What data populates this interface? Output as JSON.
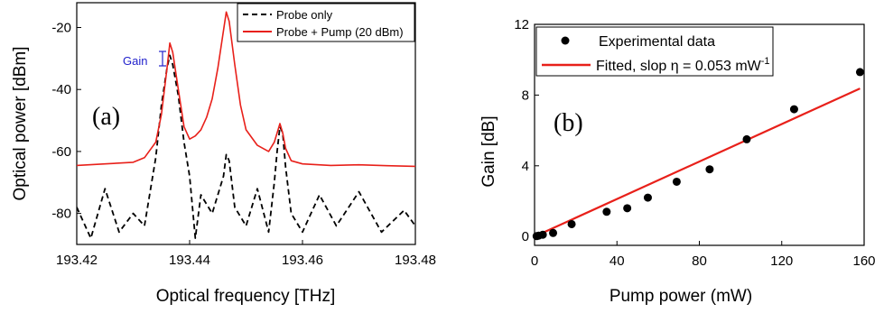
{
  "chart_data": [
    {
      "type": "line",
      "panel_label": "(a)",
      "xlabel": "Optical frequency [THz]",
      "ylabel": "Optical power [dBm]",
      "xlim": [
        193.42,
        193.48
      ],
      "ylim": [
        -90,
        -12
      ],
      "xticks": [
        "193.42",
        "193.44",
        "193.46",
        "193.48"
      ],
      "yticks": [
        "-80",
        "-60",
        "-40",
        "-20"
      ],
      "legend_position": "top-right",
      "gain_annotation": "Gain",
      "colors": {
        "probe_only": "#000000",
        "probe_pump": "#e8201a",
        "gain_marker": "#2222cc"
      },
      "series": [
        {
          "name": "Probe only",
          "style": "dashed",
          "x": [
            193.42,
            193.4225,
            193.425,
            193.4275,
            193.43,
            193.432,
            193.434,
            193.435,
            193.436,
            193.4365,
            193.437,
            193.438,
            193.439,
            193.44,
            193.441,
            193.442,
            193.444,
            193.446,
            193.4465,
            193.447,
            193.448,
            193.45,
            193.452,
            193.454,
            193.455,
            193.4555,
            193.456,
            193.4565,
            193.457,
            193.458,
            193.46,
            193.463,
            193.466,
            193.47,
            193.474,
            193.478,
            193.48
          ],
          "y": [
            -78,
            -88,
            -72,
            -86,
            -80,
            -84,
            -62,
            -45,
            -33,
            -29,
            -32,
            -42,
            -57,
            -68,
            -88,
            -74,
            -80,
            -68,
            -61,
            -63,
            -78,
            -84,
            -72,
            -86,
            -70,
            -60,
            -52,
            -54,
            -65,
            -80,
            -86,
            -74,
            -84,
            -73,
            -86,
            -79,
            -84
          ]
        },
        {
          "name": "Probe + Pump (20 dBm)",
          "style": "solid",
          "x": [
            193.42,
            193.425,
            193.43,
            193.432,
            193.434,
            193.435,
            193.436,
            193.4365,
            193.437,
            193.438,
            193.439,
            193.44,
            193.441,
            193.442,
            193.443,
            193.444,
            193.445,
            193.446,
            193.4465,
            193.447,
            193.448,
            193.449,
            193.45,
            193.452,
            193.454,
            193.455,
            193.4555,
            193.456,
            193.4565,
            193.457,
            193.458,
            193.46,
            193.465,
            193.47,
            193.475,
            193.48
          ],
          "y": [
            -64.5,
            -64,
            -63.5,
            -62,
            -57,
            -48,
            -33,
            -25,
            -28,
            -40,
            -52,
            -56,
            -55,
            -53,
            -49,
            -43,
            -33,
            -21,
            -15,
            -18,
            -32,
            -45,
            -53,
            -58,
            -60,
            -57,
            -54,
            -51,
            -54,
            -59,
            -63,
            -64,
            -64.5,
            -64.3,
            -64.6,
            -64.8
          ]
        }
      ]
    },
    {
      "type": "scatter",
      "panel_label": "(b)",
      "xlabel": "Pump power (mW)",
      "ylabel": "Gain [dB]",
      "xlim": [
        0,
        160
      ],
      "ylim": [
        -0.5,
        12
      ],
      "xticks": [
        "0",
        "40",
        "80",
        "120",
        "160"
      ],
      "yticks": [
        "0",
        "4",
        "8",
        "12"
      ],
      "legend_position": "top-left",
      "legend_fit_prefix": "Fitted, slop η = 0.053 mW",
      "legend_fit_exponent": "-1",
      "colors": {
        "data": "#000000",
        "fit": "#e8201a"
      },
      "series": [
        {
          "name": "Experimental data",
          "x": [
            1,
            2,
            4,
            9,
            18,
            35,
            45,
            55,
            69,
            85,
            103,
            126,
            158
          ],
          "y": [
            0.02,
            0.05,
            0.1,
            0.2,
            0.7,
            1.4,
            1.6,
            2.2,
            3.1,
            3.8,
            5.5,
            7.2,
            9.3
          ]
        }
      ],
      "fit": {
        "name": "Fitted, slop η = 0.053 mW-1",
        "slope": 0.053,
        "intercept": 0,
        "x_range": [
          0,
          158
        ]
      }
    }
  ]
}
